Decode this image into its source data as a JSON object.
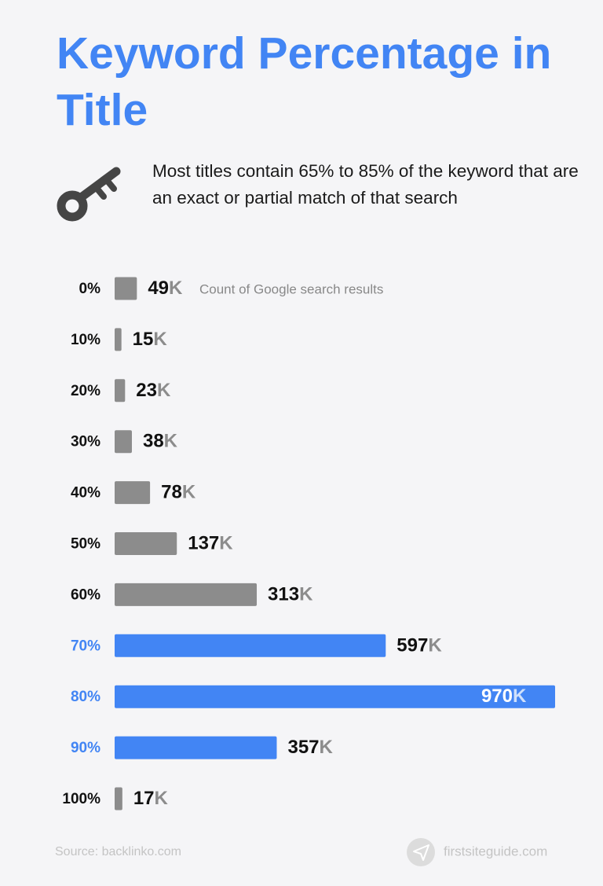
{
  "chart_data": {
    "type": "bar",
    "orientation": "horizontal",
    "title": "Keyword Percentage in Title",
    "subtitle": "Most titles contain 65% to 85% of the keyword that are an exact or partial match of that search",
    "annotation": "Count of Google search results",
    "categories": [
      "0%",
      "10%",
      "20%",
      "30%",
      "40%",
      "50%",
      "60%",
      "70%",
      "80%",
      "90%",
      "100%"
    ],
    "values": [
      49,
      15,
      23,
      38,
      78,
      137,
      313,
      597,
      970,
      357,
      17
    ],
    "unit": "K",
    "color": "#8c8c8c",
    "highlight_color": "#4285f4",
    "highlight": [
      false,
      false,
      false,
      false,
      false,
      false,
      false,
      true,
      true,
      true,
      false
    ],
    "source": "Source: backlinko.com",
    "brand": "firstsiteguide.com"
  }
}
